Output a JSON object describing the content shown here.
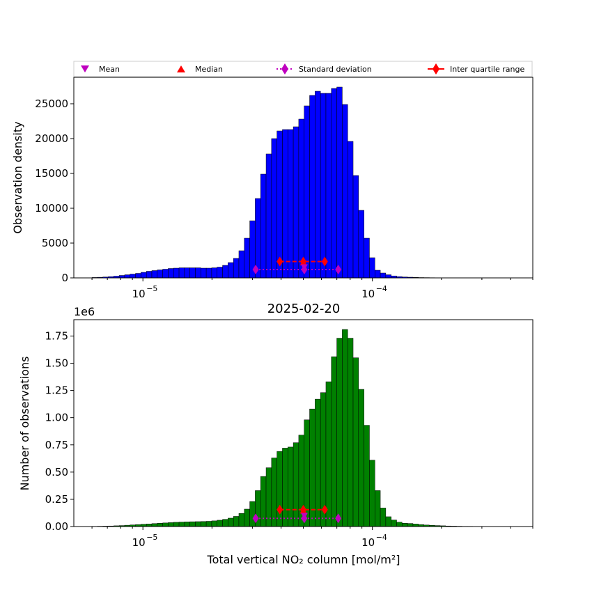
{
  "chart_data": [
    {
      "type": "bar",
      "panel": "top",
      "title": "",
      "xlabel": "",
      "ylabel": "Observation density",
      "color": "#0000ff",
      "edgecolor": "#000000",
      "xscale": "log",
      "xlim": [
        5e-06,
        0.0005
      ],
      "ylim": [
        0,
        28800
      ],
      "xticks": [
        {
          "value": 1e-05,
          "label": "10",
          "exp": "−5"
        },
        {
          "value": 0.0001,
          "label": "10",
          "exp": "−4"
        }
      ],
      "yticks": [
        {
          "value": 0,
          "label": "0"
        },
        {
          "value": 5000,
          "label": "5000"
        },
        {
          "value": 10000,
          "label": "10000"
        },
        {
          "value": 15000,
          "label": "15000"
        },
        {
          "value": 20000,
          "label": "20000"
        },
        {
          "value": 25000,
          "label": "25000"
        }
      ],
      "bin_range": [
        6e-06,
        0.00038
      ],
      "values": [
        60,
        90,
        130,
        180,
        250,
        350,
        450,
        550,
        650,
        800,
        950,
        1050,
        1150,
        1250,
        1350,
        1400,
        1450,
        1450,
        1450,
        1450,
        1400,
        1400,
        1450,
        1550,
        1800,
        2200,
        2800,
        3900,
        5700,
        8200,
        11400,
        14900,
        17800,
        20000,
        21100,
        21300,
        21300,
        21700,
        22800,
        24700,
        26200,
        26800,
        26500,
        26500,
        27200,
        27400,
        24900,
        19600,
        14700,
        9700,
        5700,
        2900,
        1100,
        700,
        450,
        280,
        180,
        130,
        100,
        70,
        50,
        40,
        30,
        25,
        20,
        15,
        10,
        8,
        6,
        5,
        4,
        3,
        2,
        2,
        1,
        1
      ],
      "stats": {
        "mean": 5.05e-05,
        "median": 5e-05,
        "std_range": [
          3.1e-05,
          7.1e-05
        ],
        "iqr_range": [
          3.95e-05,
          6.2e-05
        ],
        "y_std": 1200,
        "y_iqr": 2350,
        "y_median": 2200,
        "y_mean": 1550
      }
    },
    {
      "type": "bar",
      "panel": "bottom",
      "title": "2025-02-20",
      "xlabel": "Total vertical NO₂ column [mol/m²]",
      "ylabel": "Number of observations",
      "offset_label": "1e6",
      "color": "#008000",
      "edgecolor": "#000000",
      "xscale": "log",
      "xlim": [
        5e-06,
        0.0005
      ],
      "ylim": [
        0,
        1.9
      ],
      "xticks": [
        {
          "value": 1e-05,
          "label": "10",
          "exp": "−5"
        },
        {
          "value": 0.0001,
          "label": "10",
          "exp": "−4"
        }
      ],
      "yticks": [
        {
          "value": 0,
          "label": "0.00"
        },
        {
          "value": 0.25,
          "label": "0.25"
        },
        {
          "value": 0.5,
          "label": "0.50"
        },
        {
          "value": 0.75,
          "label": "0.75"
        },
        {
          "value": 1.0,
          "label": "1.00"
        },
        {
          "value": 1.25,
          "label": "1.25"
        },
        {
          "value": 1.5,
          "label": "1.50"
        },
        {
          "value": 1.75,
          "label": "1.75"
        }
      ],
      "bin_range": [
        6e-06,
        0.00038
      ],
      "values": [
        0.002,
        0.003,
        0.004,
        0.005,
        0.007,
        0.009,
        0.012,
        0.015,
        0.018,
        0.021,
        0.024,
        0.027,
        0.03,
        0.033,
        0.036,
        0.039,
        0.041,
        0.043,
        0.044,
        0.045,
        0.046,
        0.048,
        0.052,
        0.058,
        0.066,
        0.077,
        0.093,
        0.12,
        0.16,
        0.23,
        0.33,
        0.46,
        0.54,
        0.63,
        0.69,
        0.72,
        0.73,
        0.77,
        0.84,
        0.98,
        1.08,
        1.17,
        1.23,
        1.33,
        1.56,
        1.73,
        1.81,
        1.73,
        1.55,
        1.26,
        0.93,
        0.61,
        0.33,
        0.17,
        0.09,
        0.06,
        0.04,
        0.03,
        0.028,
        0.023,
        0.018,
        0.014,
        0.011,
        0.009,
        0.007,
        0.005,
        0.004,
        0.003,
        0.002,
        0.002,
        0.001,
        0.001,
        0.001,
        0.001,
        0.0005,
        0.0005
      ],
      "stats": {
        "mean": 5.05e-05,
        "median": 5e-05,
        "std_range": [
          3.1e-05,
          7.1e-05
        ],
        "iqr_range": [
          3.95e-05,
          6.2e-05
        ],
        "y_std": 0.075,
        "y_iqr": 0.155,
        "y_median": 0.145,
        "y_mean": 0.1
      }
    }
  ],
  "legend": {
    "location": "top",
    "items": [
      {
        "label": "Mean",
        "marker": "triangle-down",
        "color": "#bf00bf"
      },
      {
        "label": "Median",
        "marker": "triangle-up",
        "color": "#ff0000"
      },
      {
        "label": "Standard deviation",
        "marker": "diamond-dotted-line",
        "color": "#bf00bf"
      },
      {
        "label": "Inter quartile range",
        "marker": "diamond-solid-line",
        "color": "#ff0000"
      }
    ]
  }
}
